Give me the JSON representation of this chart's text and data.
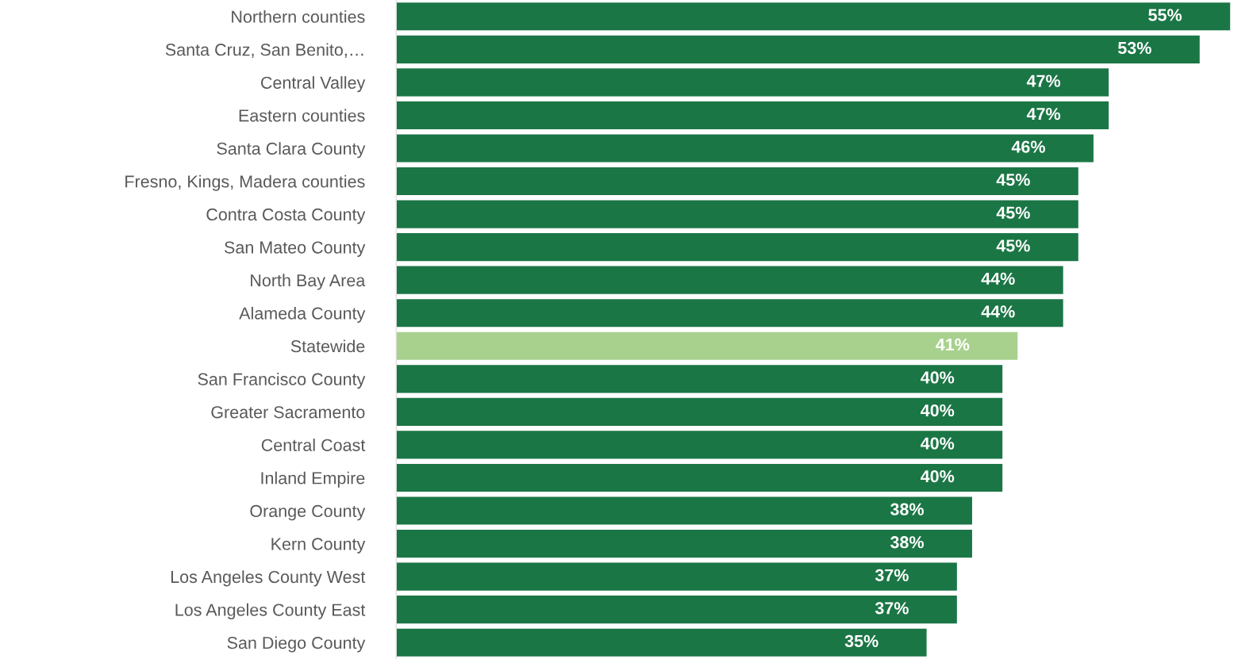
{
  "chart_data": {
    "type": "bar",
    "orientation": "horizontal",
    "categories": [
      "Northern counties",
      "Santa Cruz, San Benito,…",
      "Central Valley",
      "Eastern counties",
      "Santa Clara County",
      "Fresno, Kings, Madera counties",
      "Contra Costa County",
      "San Mateo County",
      "North Bay Area",
      "Alameda County",
      "Statewide",
      "San Francisco County",
      "Greater Sacramento",
      "Central Coast",
      "Inland Empire",
      "Orange County",
      "Kern County",
      "Los Angeles County West",
      "Los Angeles County East",
      "San Diego County"
    ],
    "values": [
      55,
      53,
      47,
      47,
      46,
      45,
      45,
      45,
      44,
      44,
      41,
      40,
      40,
      40,
      40,
      38,
      38,
      37,
      37,
      35
    ],
    "value_labels": [
      "55%",
      "53%",
      "47%",
      "47%",
      "46%",
      "45%",
      "45%",
      "45%",
      "44%",
      "44%",
      "41%",
      "40%",
      "40%",
      "40%",
      "40%",
      "38%",
      "38%",
      "37%",
      "37%",
      "35%"
    ],
    "colors": [
      "#1b7645",
      "#1b7645",
      "#1b7645",
      "#1b7645",
      "#1b7645",
      "#1b7645",
      "#1b7645",
      "#1b7645",
      "#1b7645",
      "#1b7645",
      "#a9d18e",
      "#1b7645",
      "#1b7645",
      "#1b7645",
      "#1b7645",
      "#1b7645",
      "#1b7645",
      "#1b7645",
      "#1b7645",
      "#1b7645"
    ],
    "grid": false,
    "legend": false
  }
}
